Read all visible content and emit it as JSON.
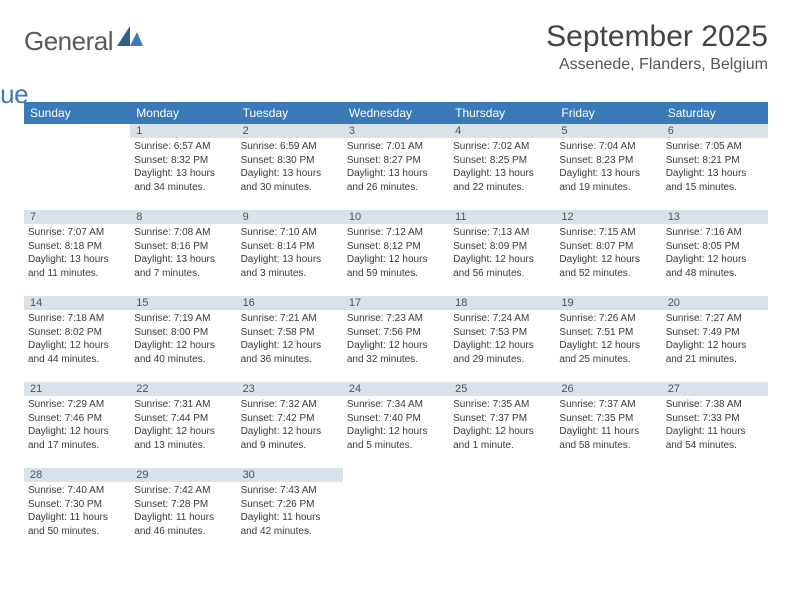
{
  "brand": {
    "general": "General",
    "blue": "Blue"
  },
  "header": {
    "title": "September 2025",
    "location": "Assenede, Flanders, Belgium"
  },
  "colors": {
    "header_bg": "#3a7ab8",
    "header_text": "#ffffff",
    "daybar_bg": "#d9e2e9",
    "daybar_text": "#4a5560",
    "body_text": "#3a3a3a",
    "logo_gray": "#595959",
    "logo_blue": "#3a7ab8",
    "page_bg": "#ffffff"
  },
  "weekdays": [
    "Sunday",
    "Monday",
    "Tuesday",
    "Wednesday",
    "Thursday",
    "Friday",
    "Saturday"
  ],
  "grid": [
    [
      {
        "blank": true
      },
      {
        "day": "1",
        "sunrise": "Sunrise: 6:57 AM",
        "sunset": "Sunset: 8:32 PM",
        "daylight1": "Daylight: 13 hours",
        "daylight2": "and 34 minutes."
      },
      {
        "day": "2",
        "sunrise": "Sunrise: 6:59 AM",
        "sunset": "Sunset: 8:30 PM",
        "daylight1": "Daylight: 13 hours",
        "daylight2": "and 30 minutes."
      },
      {
        "day": "3",
        "sunrise": "Sunrise: 7:01 AM",
        "sunset": "Sunset: 8:27 PM",
        "daylight1": "Daylight: 13 hours",
        "daylight2": "and 26 minutes."
      },
      {
        "day": "4",
        "sunrise": "Sunrise: 7:02 AM",
        "sunset": "Sunset: 8:25 PM",
        "daylight1": "Daylight: 13 hours",
        "daylight2": "and 22 minutes."
      },
      {
        "day": "5",
        "sunrise": "Sunrise: 7:04 AM",
        "sunset": "Sunset: 8:23 PM",
        "daylight1": "Daylight: 13 hours",
        "daylight2": "and 19 minutes."
      },
      {
        "day": "6",
        "sunrise": "Sunrise: 7:05 AM",
        "sunset": "Sunset: 8:21 PM",
        "daylight1": "Daylight: 13 hours",
        "daylight2": "and 15 minutes."
      }
    ],
    [
      {
        "day": "7",
        "sunrise": "Sunrise: 7:07 AM",
        "sunset": "Sunset: 8:18 PM",
        "daylight1": "Daylight: 13 hours",
        "daylight2": "and 11 minutes."
      },
      {
        "day": "8",
        "sunrise": "Sunrise: 7:08 AM",
        "sunset": "Sunset: 8:16 PM",
        "daylight1": "Daylight: 13 hours",
        "daylight2": "and 7 minutes."
      },
      {
        "day": "9",
        "sunrise": "Sunrise: 7:10 AM",
        "sunset": "Sunset: 8:14 PM",
        "daylight1": "Daylight: 13 hours",
        "daylight2": "and 3 minutes."
      },
      {
        "day": "10",
        "sunrise": "Sunrise: 7:12 AM",
        "sunset": "Sunset: 8:12 PM",
        "daylight1": "Daylight: 12 hours",
        "daylight2": "and 59 minutes."
      },
      {
        "day": "11",
        "sunrise": "Sunrise: 7:13 AM",
        "sunset": "Sunset: 8:09 PM",
        "daylight1": "Daylight: 12 hours",
        "daylight2": "and 56 minutes."
      },
      {
        "day": "12",
        "sunrise": "Sunrise: 7:15 AM",
        "sunset": "Sunset: 8:07 PM",
        "daylight1": "Daylight: 12 hours",
        "daylight2": "and 52 minutes."
      },
      {
        "day": "13",
        "sunrise": "Sunrise: 7:16 AM",
        "sunset": "Sunset: 8:05 PM",
        "daylight1": "Daylight: 12 hours",
        "daylight2": "and 48 minutes."
      }
    ],
    [
      {
        "day": "14",
        "sunrise": "Sunrise: 7:18 AM",
        "sunset": "Sunset: 8:02 PM",
        "daylight1": "Daylight: 12 hours",
        "daylight2": "and 44 minutes."
      },
      {
        "day": "15",
        "sunrise": "Sunrise: 7:19 AM",
        "sunset": "Sunset: 8:00 PM",
        "daylight1": "Daylight: 12 hours",
        "daylight2": "and 40 minutes."
      },
      {
        "day": "16",
        "sunrise": "Sunrise: 7:21 AM",
        "sunset": "Sunset: 7:58 PM",
        "daylight1": "Daylight: 12 hours",
        "daylight2": "and 36 minutes."
      },
      {
        "day": "17",
        "sunrise": "Sunrise: 7:23 AM",
        "sunset": "Sunset: 7:56 PM",
        "daylight1": "Daylight: 12 hours",
        "daylight2": "and 32 minutes."
      },
      {
        "day": "18",
        "sunrise": "Sunrise: 7:24 AM",
        "sunset": "Sunset: 7:53 PM",
        "daylight1": "Daylight: 12 hours",
        "daylight2": "and 29 minutes."
      },
      {
        "day": "19",
        "sunrise": "Sunrise: 7:26 AM",
        "sunset": "Sunset: 7:51 PM",
        "daylight1": "Daylight: 12 hours",
        "daylight2": "and 25 minutes."
      },
      {
        "day": "20",
        "sunrise": "Sunrise: 7:27 AM",
        "sunset": "Sunset: 7:49 PM",
        "daylight1": "Daylight: 12 hours",
        "daylight2": "and 21 minutes."
      }
    ],
    [
      {
        "day": "21",
        "sunrise": "Sunrise: 7:29 AM",
        "sunset": "Sunset: 7:46 PM",
        "daylight1": "Daylight: 12 hours",
        "daylight2": "and 17 minutes."
      },
      {
        "day": "22",
        "sunrise": "Sunrise: 7:31 AM",
        "sunset": "Sunset: 7:44 PM",
        "daylight1": "Daylight: 12 hours",
        "daylight2": "and 13 minutes."
      },
      {
        "day": "23",
        "sunrise": "Sunrise: 7:32 AM",
        "sunset": "Sunset: 7:42 PM",
        "daylight1": "Daylight: 12 hours",
        "daylight2": "and 9 minutes."
      },
      {
        "day": "24",
        "sunrise": "Sunrise: 7:34 AM",
        "sunset": "Sunset: 7:40 PM",
        "daylight1": "Daylight: 12 hours",
        "daylight2": "and 5 minutes."
      },
      {
        "day": "25",
        "sunrise": "Sunrise: 7:35 AM",
        "sunset": "Sunset: 7:37 PM",
        "daylight1": "Daylight: 12 hours",
        "daylight2": "and 1 minute."
      },
      {
        "day": "26",
        "sunrise": "Sunrise: 7:37 AM",
        "sunset": "Sunset: 7:35 PM",
        "daylight1": "Daylight: 11 hours",
        "daylight2": "and 58 minutes."
      },
      {
        "day": "27",
        "sunrise": "Sunrise: 7:38 AM",
        "sunset": "Sunset: 7:33 PM",
        "daylight1": "Daylight: 11 hours",
        "daylight2": "and 54 minutes."
      }
    ],
    [
      {
        "day": "28",
        "sunrise": "Sunrise: 7:40 AM",
        "sunset": "Sunset: 7:30 PM",
        "daylight1": "Daylight: 11 hours",
        "daylight2": "and 50 minutes."
      },
      {
        "day": "29",
        "sunrise": "Sunrise: 7:42 AM",
        "sunset": "Sunset: 7:28 PM",
        "daylight1": "Daylight: 11 hours",
        "daylight2": "and 46 minutes."
      },
      {
        "day": "30",
        "sunrise": "Sunrise: 7:43 AM",
        "sunset": "Sunset: 7:26 PM",
        "daylight1": "Daylight: 11 hours",
        "daylight2": "and 42 minutes."
      },
      {
        "blank": true
      },
      {
        "blank": true
      },
      {
        "blank": true
      },
      {
        "blank": true
      }
    ]
  ]
}
